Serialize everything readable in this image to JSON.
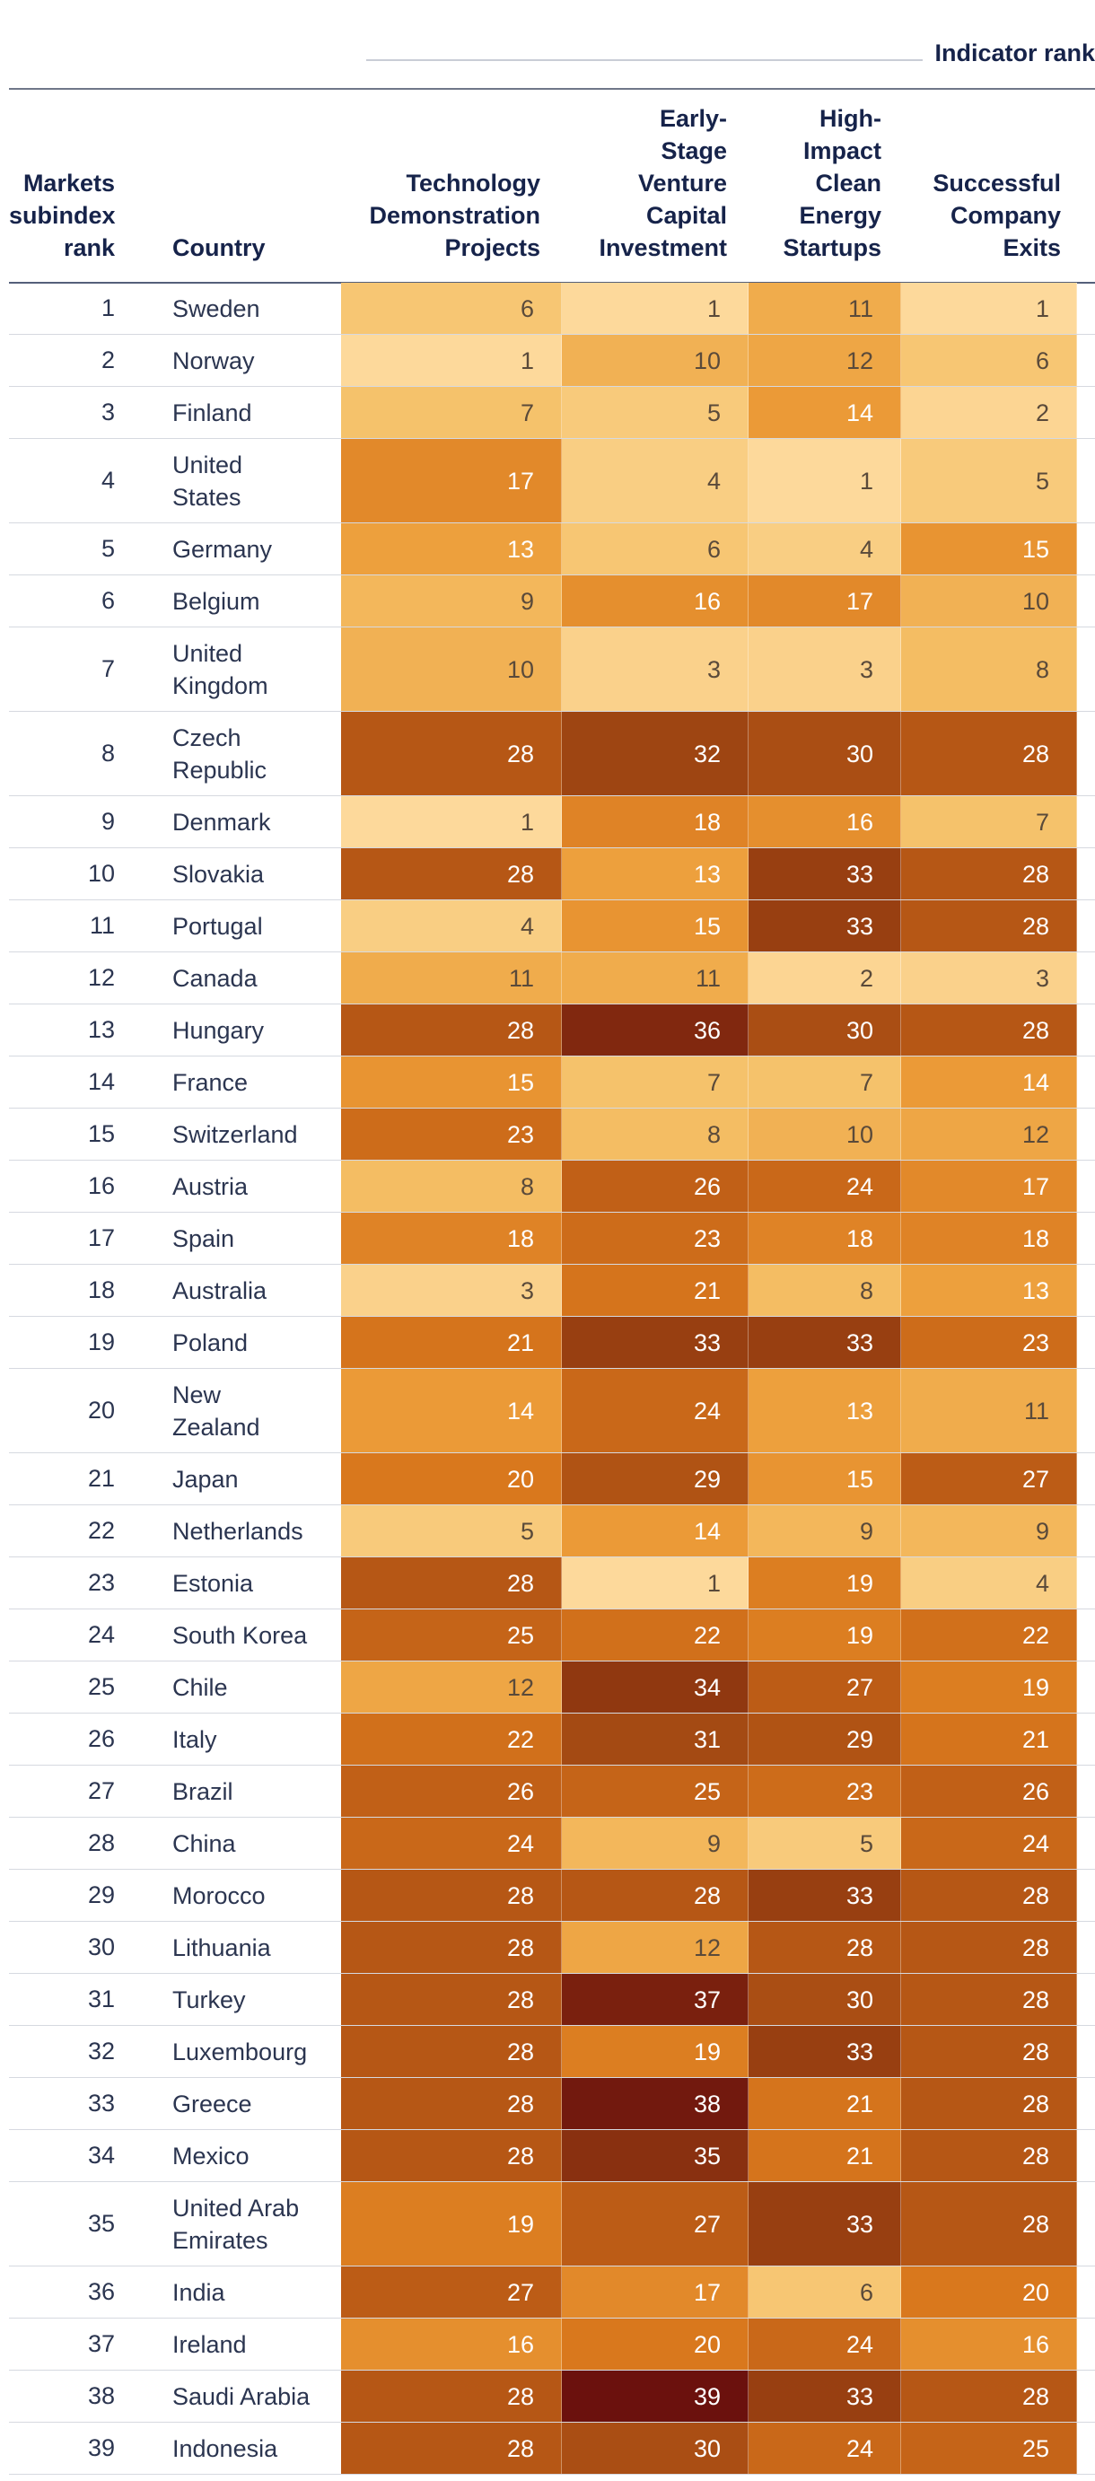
{
  "header": {
    "group_label": "Indicator rank",
    "col_rank": "Markets\nsubindex\nrank",
    "col_country": "Country",
    "indicators": [
      "Technology\nDemonstration\nProjects",
      "Early-\nStage\nVenture\nCapital\nInvestment",
      "High-\nImpact\nClean\nEnergy\nStartups",
      "Successful\nCompany\nExits"
    ]
  },
  "chart_data": {
    "type": "table",
    "title": "Indicator rank",
    "columns": [
      "Markets subindex rank",
      "Country",
      "Technology Demonstration Projects",
      "Early-Stage Venture Capital Investment",
      "High-Impact Clean Energy Startups",
      "Successful Company Exits"
    ],
    "color_scale": {
      "min": 1,
      "max": 39,
      "stops": [
        "#fdd99b",
        "#f5c168",
        "#ec9c38",
        "#d9781d",
        "#c05f17",
        "#9a4211",
        "#6b110d"
      ]
    },
    "rows": [
      {
        "rank": 1,
        "country": "Sweden",
        "values": [
          6,
          1,
          11,
          1
        ],
        "edge": "#f3b24c"
      },
      {
        "rank": 2,
        "country": "Norway",
        "values": [
          1,
          10,
          12,
          6
        ],
        "edge": "#c8600f"
      },
      {
        "rank": 3,
        "country": "Finland",
        "values": [
          7,
          5,
          14,
          2
        ],
        "edge": "#e48b2c"
      },
      {
        "rank": 4,
        "country": "United\nStates",
        "values": [
          17,
          4,
          1,
          5
        ],
        "edge": "#8a2c0d"
      },
      {
        "rank": 5,
        "country": "Germany",
        "values": [
          13,
          6,
          4,
          15
        ],
        "edge": "#f2b34e"
      },
      {
        "rank": 6,
        "country": "Belgium",
        "values": [
          9,
          16,
          17,
          10
        ],
        "edge": "#f4bb5c"
      },
      {
        "rank": 7,
        "country": "United\nKingdom",
        "values": [
          10,
          3,
          3,
          8
        ],
        "edge": "#d06b18"
      },
      {
        "rank": 8,
        "country": "Czech\nRepublic",
        "values": [
          28,
          32,
          30,
          28
        ],
        "edge": "#f6c46c"
      },
      {
        "rank": 9,
        "country": "Denmark",
        "values": [
          1,
          18,
          16,
          7
        ],
        "edge": "#f3b24c"
      },
      {
        "rank": 10,
        "country": "Slovakia",
        "values": [
          28,
          13,
          33,
          28
        ],
        "edge": "#f6c46c"
      },
      {
        "rank": 11,
        "country": "Portugal",
        "values": [
          4,
          15,
          33,
          28
        ],
        "edge": "#9a3e10"
      },
      {
        "rank": 12,
        "country": "Canada",
        "values": [
          11,
          11,
          2,
          3
        ],
        "edge": "#e08328"
      },
      {
        "rank": 13,
        "country": "Hungary",
        "values": [
          28,
          36,
          30,
          28
        ],
        "edge": "#f3b24c"
      },
      {
        "rank": 14,
        "country": "France",
        "values": [
          15,
          7,
          7,
          14
        ],
        "edge": "#c8600f"
      },
      {
        "rank": 15,
        "country": "Switzerland",
        "values": [
          23,
          8,
          10,
          12
        ],
        "edge": "#e48b2c"
      },
      {
        "rank": 16,
        "country": "Austria",
        "values": [
          8,
          26,
          24,
          17
        ],
        "edge": "#f3b24c"
      },
      {
        "rank": 17,
        "country": "Spain",
        "values": [
          18,
          23,
          18,
          18
        ],
        "edge": "#d9781d"
      },
      {
        "rank": 18,
        "country": "Australia",
        "values": [
          3,
          21,
          8,
          13
        ],
        "edge": "#8a2c0d"
      },
      {
        "rank": 19,
        "country": "Poland",
        "values": [
          21,
          33,
          33,
          23
        ],
        "edge": "#f4bb5c"
      },
      {
        "rank": 20,
        "country": "New\nZealand",
        "values": [
          14,
          24,
          13,
          11
        ],
        "edge": "#b9550f"
      },
      {
        "rank": 21,
        "country": "Japan",
        "values": [
          20,
          29,
          15,
          27
        ],
        "edge": "#f6c46c"
      },
      {
        "rank": 22,
        "country": "Netherlands",
        "values": [
          5,
          14,
          9,
          9
        ],
        "edge": "#c8600f"
      },
      {
        "rank": 23,
        "country": "Estonia",
        "values": [
          28,
          1,
          19,
          4
        ],
        "edge": "#f3b24c"
      },
      {
        "rank": 24,
        "country": "South Korea",
        "values": [
          25,
          22,
          19,
          22
        ],
        "edge": "#f4bb5c"
      },
      {
        "rank": 25,
        "country": "Chile",
        "values": [
          12,
          34,
          27,
          19
        ],
        "edge": "#f6c46c"
      },
      {
        "rank": 26,
        "country": "Italy",
        "values": [
          22,
          31,
          29,
          21
        ],
        "edge": "#f3b24c"
      },
      {
        "rank": 27,
        "country": "Brazil",
        "values": [
          26,
          25,
          23,
          26
        ],
        "edge": "#9a3e10"
      },
      {
        "rank": 28,
        "country": "China",
        "values": [
          24,
          9,
          5,
          24
        ],
        "edge": "#e08328"
      },
      {
        "rank": 29,
        "country": "Morocco",
        "values": [
          28,
          28,
          33,
          28
        ],
        "edge": "#f3b24c"
      },
      {
        "rank": 30,
        "country": "Lithuania",
        "values": [
          28,
          12,
          28,
          28
        ],
        "edge": "#f6c46c"
      },
      {
        "rank": 31,
        "country": "Turkey",
        "values": [
          28,
          37,
          30,
          28
        ],
        "edge": "#f4bb5c"
      },
      {
        "rank": 32,
        "country": "Luxembourg",
        "values": [
          28,
          19,
          33,
          28
        ],
        "edge": "#f3b24c"
      },
      {
        "rank": 33,
        "country": "Greece",
        "values": [
          28,
          38,
          21,
          28
        ],
        "edge": "#f6c46c"
      },
      {
        "rank": 34,
        "country": "Mexico",
        "values": [
          28,
          35,
          21,
          28
        ],
        "edge": "#f3b24c"
      },
      {
        "rank": 35,
        "country": "United Arab\nEmirates",
        "values": [
          19,
          27,
          33,
          28
        ],
        "edge": "#f4bb5c"
      },
      {
        "rank": 36,
        "country": "India",
        "values": [
          27,
          17,
          6,
          20
        ],
        "edge": "#f6c46c"
      },
      {
        "rank": 37,
        "country": "Ireland",
        "values": [
          16,
          20,
          24,
          16
        ],
        "edge": "#f3b24c"
      },
      {
        "rank": 38,
        "country": "Saudi Arabia",
        "values": [
          28,
          39,
          33,
          28
        ],
        "edge": "#f4bb5c"
      },
      {
        "rank": 39,
        "country": "Indonesia",
        "values": [
          28,
          30,
          24,
          25
        ],
        "edge": "#f6c46c"
      }
    ]
  }
}
